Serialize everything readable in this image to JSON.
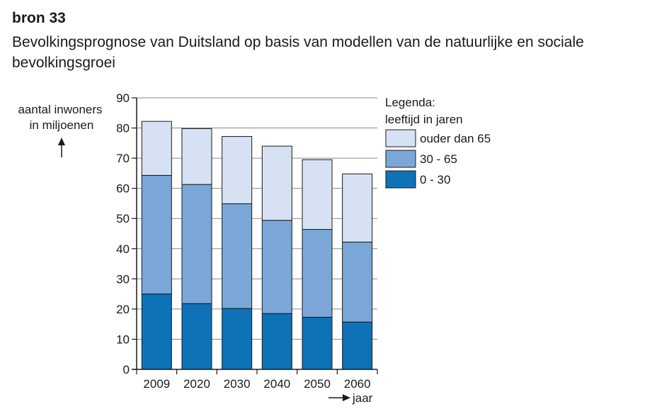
{
  "header": {
    "source_label": "bron 33",
    "caption": "Bevolkingsprognose van Duitsland op basis van modellen van de natuurlijke en sociale bevolkingsgroei"
  },
  "chart_data": {
    "type": "bar",
    "stacked": true,
    "categories": [
      "2009",
      "2020",
      "2030",
      "2040",
      "2050",
      "2060"
    ],
    "series": [
      {
        "name": "0 - 30",
        "color": "#0d72b6",
        "values": [
          25,
          21.8,
          20.2,
          18.5,
          17.3,
          15.7
        ]
      },
      {
        "name": "30 - 65",
        "color": "#7ba7d8",
        "values": [
          39.3,
          39.5,
          34.7,
          30.9,
          29.1,
          26.5
        ]
      },
      {
        "name": "ouder dan 65",
        "color": "#d6e2f3",
        "values": [
          17.9,
          18.5,
          22.3,
          24.6,
          23.1,
          22.6
        ]
      }
    ],
    "ylim": [
      0,
      90
    ],
    "yticks": [
      0,
      10,
      20,
      30,
      40,
      50,
      60,
      70,
      80,
      90
    ],
    "ylabel": [
      "aantal inwoners",
      "in miljoenen"
    ],
    "xlabel": "jaar",
    "grid": true,
    "legend": {
      "title": [
        "Legenda:",
        "leeftijd in jaren"
      ],
      "order": [
        "ouder dan 65",
        "30 - 65",
        "0 - 30"
      ],
      "position": "right"
    }
  }
}
